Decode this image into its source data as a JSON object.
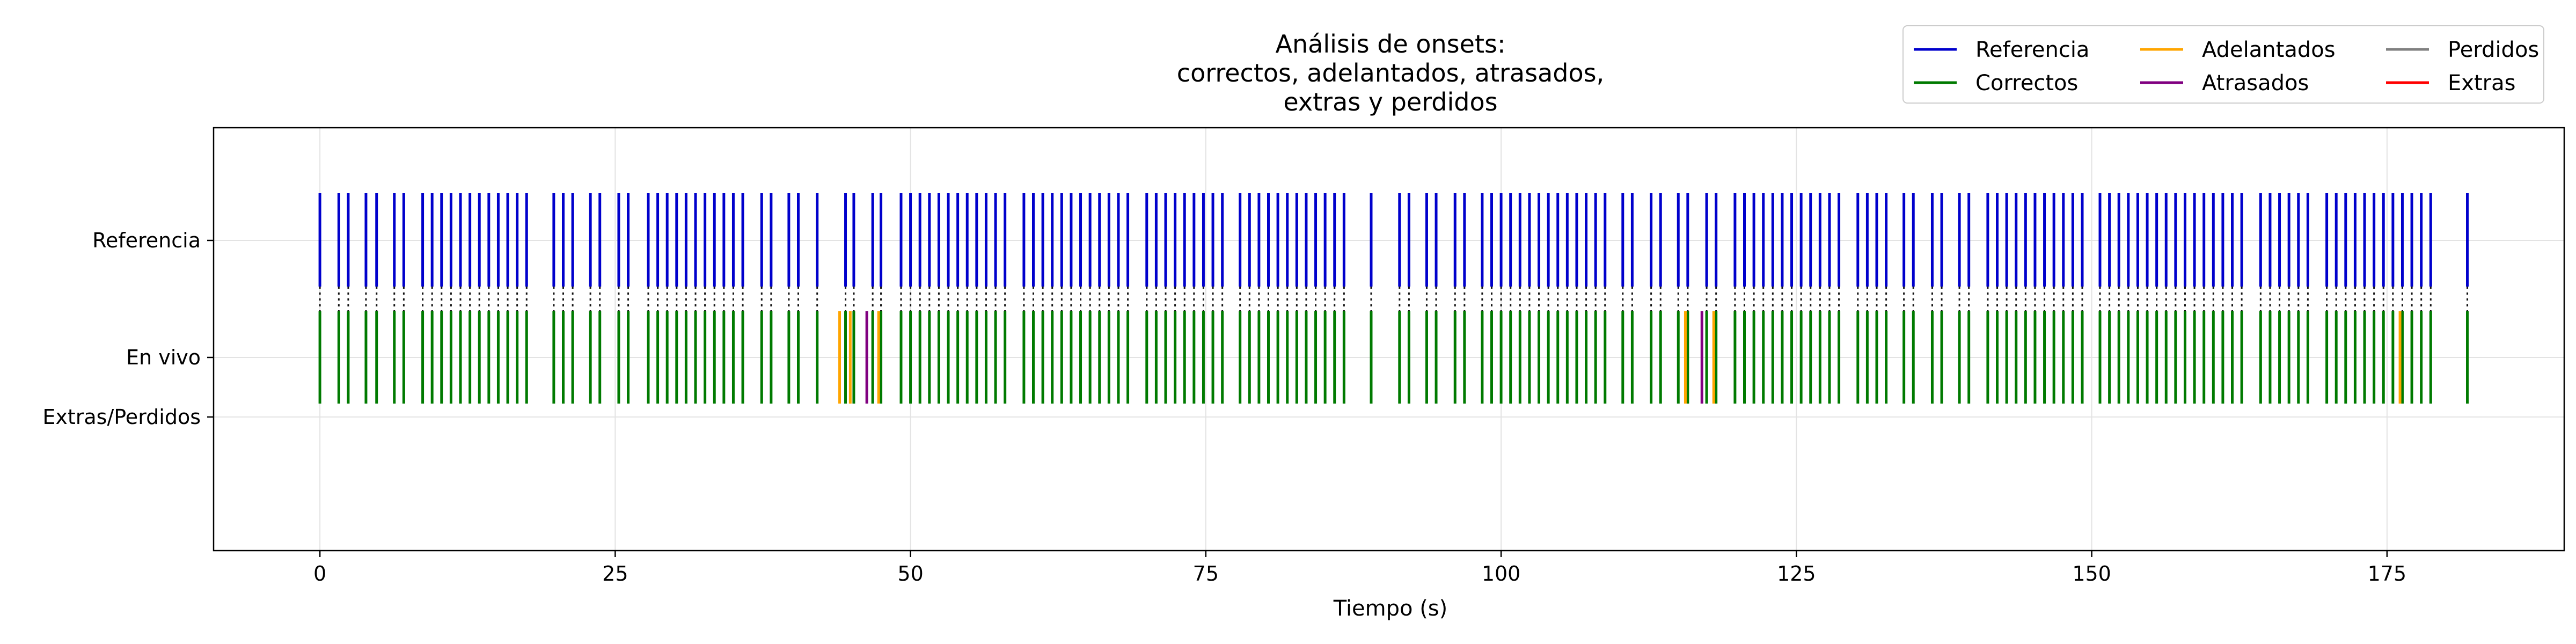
{
  "chart_data": {
    "type": "event_raster",
    "title_lines": [
      "Análisis de onsets:",
      "correctos, adelantados, atrasados,",
      "extras y perdidos"
    ],
    "xlabel": "Tiempo (s)",
    "xlim": [
      -9,
      190
    ],
    "xticks": [
      0,
      25,
      50,
      75,
      100,
      125,
      150,
      175
    ],
    "rows": [
      "Referencia",
      "En vivo",
      "Extras/Perdidos"
    ],
    "grid": true,
    "legend_position": "top-right",
    "legend": [
      {
        "label": "Referencia",
        "color": "#0000cc"
      },
      {
        "label": "Correctos",
        "color": "#007a00"
      },
      {
        "label": "Adelantados",
        "color": "#ffa500"
      },
      {
        "label": "Atrasados",
        "color": "#800080"
      },
      {
        "label": "Perdidos",
        "color": "#808080"
      },
      {
        "label": "Extras",
        "color": "#ff0000"
      }
    ],
    "reference_onsets": [
      0.0,
      1.6,
      2.4,
      3.9,
      4.8,
      6.3,
      7.1,
      8.7,
      9.5,
      10.3,
      11.1,
      11.9,
      12.7,
      13.5,
      14.3,
      15.1,
      15.9,
      16.7,
      17.5,
      19.8,
      20.6,
      21.4,
      22.9,
      23.7,
      25.3,
      26.1,
      27.8,
      28.6,
      29.4,
      30.2,
      31.0,
      31.8,
      32.6,
      33.4,
      34.2,
      35.0,
      35.8,
      37.4,
      38.2,
      39.7,
      40.5,
      42.1,
      44.5,
      45.2,
      46.8,
      47.5,
      49.2,
      50.0,
      50.8,
      51.6,
      52.4,
      53.2,
      54.0,
      54.8,
      55.6,
      56.4,
      57.2,
      58.0,
      59.6,
      60.4,
      61.2,
      62.0,
      62.8,
      63.6,
      64.4,
      65.2,
      66.0,
      66.8,
      67.6,
      68.4,
      70.0,
      70.8,
      71.6,
      72.4,
      73.2,
      74.0,
      74.8,
      75.6,
      76.4,
      77.9,
      78.7,
      79.5,
      80.3,
      81.1,
      81.9,
      82.7,
      83.5,
      84.3,
      85.1,
      85.9,
      86.7,
      89.0,
      91.4,
      92.2,
      93.7,
      94.5,
      96.1,
      96.9,
      98.4,
      99.2,
      100.0,
      100.8,
      101.6,
      102.4,
      103.2,
      104.0,
      104.8,
      105.6,
      106.4,
      107.2,
      108.0,
      108.8,
      110.3,
      111.1,
      112.7,
      113.5,
      115.0,
      115.8,
      117.4,
      118.2,
      119.8,
      120.6,
      121.4,
      122.2,
      123.0,
      123.8,
      124.6,
      125.4,
      126.2,
      127.0,
      127.8,
      128.6,
      130.2,
      131.0,
      131.8,
      132.6,
      134.1,
      134.9,
      136.5,
      137.3,
      138.8,
      139.6,
      141.2,
      142.0,
      142.8,
      143.6,
      144.4,
      145.2,
      146.0,
      146.8,
      147.6,
      148.4,
      149.2,
      150.7,
      151.5,
      152.3,
      153.1,
      153.9,
      154.7,
      155.5,
      156.3,
      157.1,
      157.9,
      158.7,
      159.5,
      160.3,
      161.1,
      161.9,
      162.7,
      164.3,
      165.1,
      165.9,
      166.7,
      167.5,
      168.3,
      169.9,
      170.7,
      171.5,
      172.3,
      173.1,
      173.9,
      174.7,
      175.5,
      176.3,
      177.1,
      177.9,
      178.7,
      181.8
    ],
    "early_onsets": [
      44.0,
      44.9,
      47.3,
      115.6,
      118.0,
      176.1
    ],
    "late_onsets": [
      46.3,
      117.0
    ],
    "missed_onsets": [],
    "extra_onsets": []
  }
}
